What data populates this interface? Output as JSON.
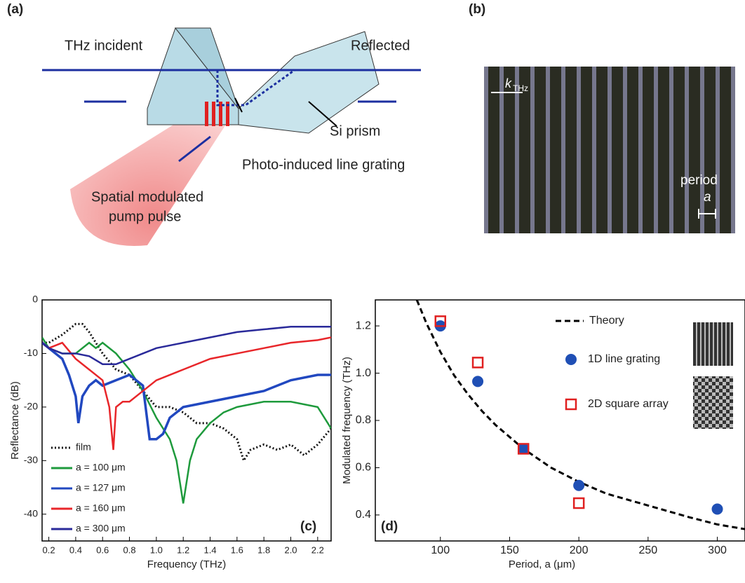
{
  "figure": {
    "a": {
      "label": "(a)",
      "thz_incident": "THz incident",
      "reflected": "Reflected",
      "si_prism": "Si prism",
      "grating": "Photo-induced line grating",
      "pump_line1": "Spatial modulated",
      "pump_line2": "pump pulse"
    },
    "b": {
      "label": "(b)",
      "k": "k",
      "k_sub": "THz",
      "period": "period",
      "a": "a"
    }
  },
  "chart_data": [
    {
      "type": "line",
      "panel_label": "(c)",
      "xlabel": "Frequency (THz)",
      "ylabel": "Reflectance (dB)",
      "xlim": [
        0.15,
        2.3
      ],
      "ylim": [
        -45,
        0
      ],
      "xticks": [
        0.2,
        0.4,
        0.6,
        0.8,
        {
          "value": 1.0,
          "label": "1.0"
        },
        1.2,
        1.4,
        1.6,
        1.8,
        {
          "value": 2.0,
          "label": "2.0"
        },
        2.2
      ],
      "yticks": [
        0,
        -10,
        -20,
        -30,
        -40
      ],
      "series": [
        {
          "name": "film",
          "color": "#111111",
          "dash": "dotted",
          "x": [
            0.15,
            0.2,
            0.3,
            0.4,
            0.45,
            0.5,
            0.6,
            0.7,
            0.8,
            0.9,
            1.0,
            1.1,
            1.2,
            1.3,
            1.4,
            1.5,
            1.6,
            1.65,
            1.7,
            1.8,
            1.9,
            2.0,
            2.1,
            2.2,
            2.3
          ],
          "values": [
            -8,
            -8,
            -6.5,
            -4.5,
            -4.5,
            -6,
            -10,
            -13,
            -14,
            -17,
            -20,
            -20,
            -21,
            -23,
            -23,
            -24,
            -26,
            -30,
            -28,
            -27,
            -28,
            -27,
            -29,
            -27,
            -24
          ]
        },
        {
          "name": "a = 100 μm",
          "color": "#1e9a3c",
          "x": [
            0.15,
            0.2,
            0.3,
            0.4,
            0.5,
            0.55,
            0.6,
            0.7,
            0.8,
            0.9,
            1.0,
            1.1,
            1.15,
            1.2,
            1.25,
            1.3,
            1.4,
            1.5,
            1.6,
            1.8,
            2.0,
            2.2,
            2.3
          ],
          "values": [
            -7,
            -9,
            -10,
            -10,
            -8,
            -9,
            -8,
            -10,
            -13,
            -17,
            -22,
            -26,
            -30,
            -38,
            -30,
            -26,
            -23,
            -21,
            -20,
            -19,
            -19,
            -20,
            -24
          ]
        },
        {
          "name": "a = 127 μm",
          "color": "#2148c0",
          "x": [
            0.15,
            0.2,
            0.3,
            0.35,
            0.4,
            0.42,
            0.45,
            0.5,
            0.55,
            0.6,
            0.7,
            0.8,
            0.9,
            0.95,
            1.0,
            1.05,
            1.1,
            1.2,
            1.4,
            1.6,
            1.8,
            2.0,
            2.2,
            2.3
          ],
          "values": [
            -8,
            -9,
            -11,
            -14,
            -18,
            -23,
            -18,
            -16,
            -15,
            -16,
            -15,
            -14,
            -16,
            -26,
            -26,
            -25,
            -22,
            -20,
            -19,
            -18,
            -17,
            -15,
            -14,
            -14
          ]
        },
        {
          "name": "a = 160 μm",
          "color": "#e8262a",
          "x": [
            0.15,
            0.2,
            0.3,
            0.4,
            0.5,
            0.6,
            0.65,
            0.68,
            0.7,
            0.75,
            0.8,
            0.9,
            1.0,
            1.2,
            1.4,
            1.6,
            1.8,
            2.0,
            2.2,
            2.3
          ],
          "values": [
            -8,
            -9,
            -8,
            -11,
            -13,
            -15,
            -20,
            -28,
            -20,
            -19,
            -19,
            -17,
            -15,
            -13,
            -11,
            -10,
            -9,
            -8,
            -7.5,
            -7
          ]
        },
        {
          "name": "a = 300 μm",
          "color": "#2a2a9a",
          "x": [
            0.15,
            0.2,
            0.3,
            0.4,
            0.5,
            0.6,
            0.7,
            0.8,
            0.9,
            1.0,
            1.2,
            1.4,
            1.6,
            1.8,
            2.0,
            2.2,
            2.3
          ],
          "values": [
            -8,
            -9,
            -10,
            -10,
            -10.5,
            -12,
            -12,
            -11,
            -10,
            -9,
            -8,
            -7,
            -6,
            -5.5,
            -5,
            -5,
            -5
          ]
        }
      ]
    },
    {
      "type": "scatter",
      "panel_label": "(d)",
      "xlabel": "Period, a (μm)",
      "ylabel": "Modulated frequency (THz)",
      "xlim": [
        53,
        320
      ],
      "ylim": [
        0.29,
        1.31
      ],
      "xticks": [
        100,
        150,
        200,
        250,
        300
      ],
      "yticks": [
        0.4,
        0.6,
        0.8,
        {
          "value": 1.0,
          "label": "1.0"
        },
        1.2
      ],
      "series": [
        {
          "name": "Theory",
          "color": "#000000",
          "dash": "dashed",
          "x": [
            83,
            90,
            100,
            110,
            120,
            130,
            140,
            160,
            180,
            200,
            220,
            250,
            280,
            300,
            320
          ],
          "values": [
            1.31,
            1.21,
            1.09,
            0.99,
            0.91,
            0.84,
            0.78,
            0.68,
            0.6,
            0.54,
            0.49,
            0.44,
            0.39,
            0.36,
            0.34
          ]
        },
        {
          "name": "1D line grating",
          "color": "#1f4fb5",
          "marker": "circle",
          "x": [
            100,
            127,
            160,
            200,
            300
          ],
          "values": [
            1.2,
            0.965,
            0.68,
            0.525,
            0.425
          ]
        },
        {
          "name": "2D square array",
          "color": "#e02020",
          "marker": "square",
          "x": [
            100,
            127,
            160,
            200
          ],
          "values": [
            1.22,
            1.045,
            0.68,
            0.45
          ]
        }
      ]
    }
  ]
}
